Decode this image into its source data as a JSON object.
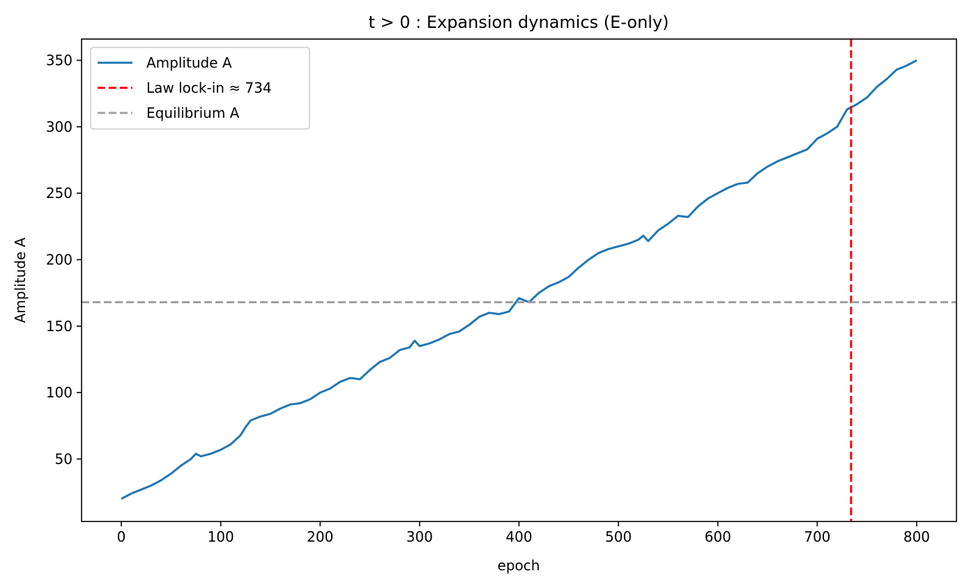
{
  "chart_data": {
    "type": "line",
    "title": "t > 0 : Expansion dynamics (E-only)",
    "xlabel": "epoch",
    "ylabel": "Amplitude A",
    "xlim": [
      -40,
      840
    ],
    "ylim": [
      3,
      366
    ],
    "xticks": [
      0,
      100,
      200,
      300,
      400,
      500,
      600,
      700,
      800
    ],
    "yticks": [
      50,
      100,
      150,
      200,
      250,
      300,
      350
    ],
    "grid": false,
    "legend_position": "top-left",
    "series": [
      {
        "name": "Amplitude A",
        "color": "#1f77b4",
        "style": "solid",
        "x": [
          0,
          10,
          20,
          30,
          40,
          50,
          60,
          70,
          75,
          80,
          90,
          100,
          110,
          120,
          125,
          130,
          140,
          150,
          160,
          170,
          180,
          190,
          200,
          210,
          220,
          230,
          240,
          250,
          260,
          270,
          280,
          290,
          295,
          300,
          310,
          320,
          330,
          340,
          350,
          360,
          370,
          380,
          390,
          400,
          410,
          420,
          430,
          440,
          450,
          460,
          470,
          480,
          490,
          500,
          510,
          520,
          525,
          530,
          540,
          550,
          560,
          570,
          580,
          590,
          600,
          610,
          620,
          630,
          640,
          650,
          660,
          670,
          680,
          690,
          700,
          710,
          720,
          730,
          740,
          750,
          760,
          770,
          780,
          790,
          800
        ],
        "y": [
          20,
          24,
          27,
          30,
          34,
          39,
          45,
          50,
          54,
          52,
          54,
          57,
          61,
          68,
          74,
          79,
          82,
          84,
          88,
          91,
          92,
          95,
          100,
          103,
          108,
          111,
          110,
          117,
          123,
          126,
          132,
          134,
          139,
          135,
          137,
          140,
          144,
          146,
          151,
          157,
          160,
          159,
          161,
          171,
          168,
          175,
          180,
          183,
          187,
          194,
          200,
          205,
          208,
          210,
          212,
          215,
          218,
          214,
          222,
          227,
          233,
          232,
          240,
          246,
          250,
          254,
          257,
          258,
          265,
          270,
          274,
          277,
          280,
          283,
          291,
          295,
          300,
          313,
          317,
          322,
          330,
          336,
          343,
          346,
          350
        ]
      },
      {
        "name": "Law lock-in ≈ 734",
        "color": "#ff0000",
        "style": "dashed",
        "orientation": "vertical",
        "x_value": 734
      },
      {
        "name": "Equilibrium A",
        "color": "#a0a0a0",
        "style": "dashed",
        "orientation": "horizontal",
        "y_value": 168
      }
    ]
  }
}
